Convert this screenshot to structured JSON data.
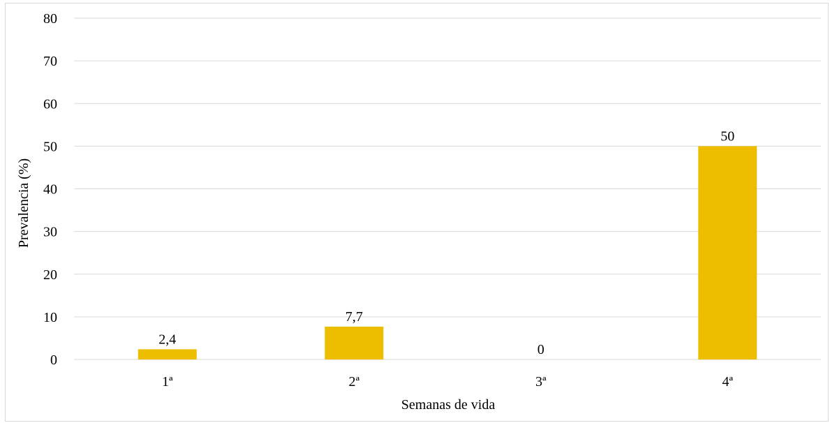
{
  "chart_data": {
    "type": "bar",
    "categories": [
      "1ª",
      "2ª",
      "3ª",
      "4ª"
    ],
    "values": [
      2.4,
      7.7,
      0,
      50
    ],
    "data_labels": [
      "2,4",
      "7,7",
      "0",
      "50"
    ],
    "xlabel": "Semanas de vida",
    "ylabel": "Prevalencia (%)",
    "ylim": [
      0,
      80
    ],
    "yticks": [
      0,
      10,
      20,
      30,
      40,
      50,
      60,
      70,
      80
    ],
    "grid": "horizontal",
    "legend": "none",
    "bar_color": "#EDBE00",
    "gridline_color": "#d9d9d9"
  }
}
